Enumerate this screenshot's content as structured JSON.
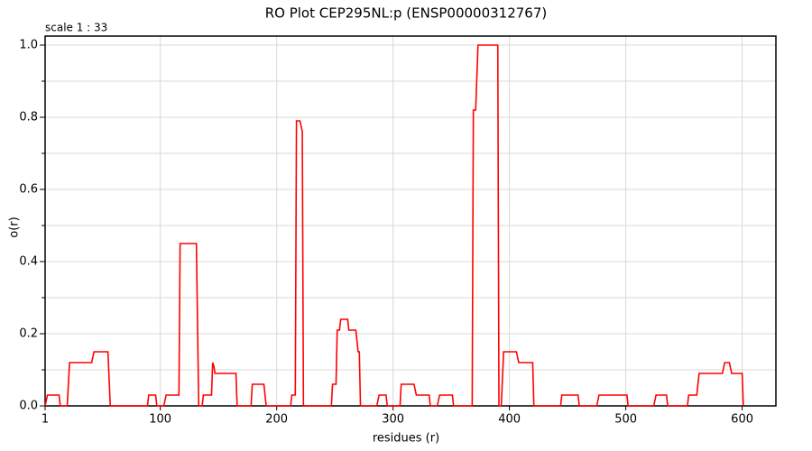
{
  "chart_data": {
    "type": "line",
    "title": "RO Plot CEP295NL:p (ENSP00000312767)",
    "subtitle": "scale 1 : 33",
    "x_label": "residues (r)",
    "y_label": "o(r)",
    "color": "#ff0000",
    "grid": true,
    "x": [
      1,
      3,
      13,
      14,
      20,
      22,
      41,
      43,
      55,
      57,
      89,
      90,
      96,
      97,
      103,
      105,
      116,
      117,
      131,
      133,
      136,
      137,
      144,
      145,
      146,
      147,
      165,
      166,
      178,
      179,
      189,
      191,
      212,
      213,
      216,
      217,
      220,
      222,
      223,
      247,
      248,
      251,
      252,
      254,
      255,
      261,
      262,
      268,
      270,
      271,
      272,
      286,
      288,
      294,
      295,
      306,
      307,
      318,
      320,
      331,
      332,
      338,
      340,
      351,
      352,
      368,
      369,
      371,
      373,
      390,
      391,
      393,
      395,
      406,
      408,
      420,
      421,
      444,
      445,
      459,
      460,
      475,
      477,
      501,
      502,
      524,
      526,
      535,
      536,
      553,
      554,
      561,
      563,
      583,
      585,
      589,
      591,
      600,
      601
    ],
    "values": [
      0,
      0.03,
      0.03,
      0,
      0,
      0.12,
      0.12,
      0.15,
      0.15,
      0,
      0,
      0.03,
      0.03,
      0,
      0,
      0.03,
      0.03,
      0.45,
      0.45,
      0,
      0,
      0.03,
      0.03,
      0.12,
      0.11,
      0.09,
      0.09,
      0,
      0,
      0.06,
      0.06,
      0,
      0,
      0.03,
      0.03,
      0.79,
      0.79,
      0.76,
      0,
      0,
      0.06,
      0.06,
      0.21,
      0.21,
      0.24,
      0.24,
      0.21,
      0.21,
      0.15,
      0.15,
      0,
      0,
      0.03,
      0.03,
      0,
      0,
      0.06,
      0.06,
      0.03,
      0.03,
      0,
      0,
      0.03,
      0.03,
      0,
      0,
      0.82,
      0.82,
      1.0,
      1.0,
      0,
      0,
      0.15,
      0.15,
      0.12,
      0.12,
      0,
      0,
      0.03,
      0.03,
      0,
      0,
      0.03,
      0.03,
      0,
      0,
      0.03,
      0.03,
      0,
      0,
      0.03,
      0.03,
      0.09,
      0.09,
      0.12,
      0.12,
      0.09,
      0.09,
      0
    ],
    "xlim": [
      1,
      629
    ],
    "ylim": [
      0,
      1.025
    ],
    "xticks": [
      1,
      100,
      200,
      300,
      400,
      500,
      600
    ],
    "yticks": [
      {
        "value": 0,
        "label": "0.0"
      },
      0.2,
      0.4,
      0.6,
      0.8,
      {
        "value": 1,
        "label": "1.0"
      }
    ],
    "yminor_ticks": [
      0.1,
      0.3,
      0.5,
      0.7,
      0.9
    ]
  }
}
